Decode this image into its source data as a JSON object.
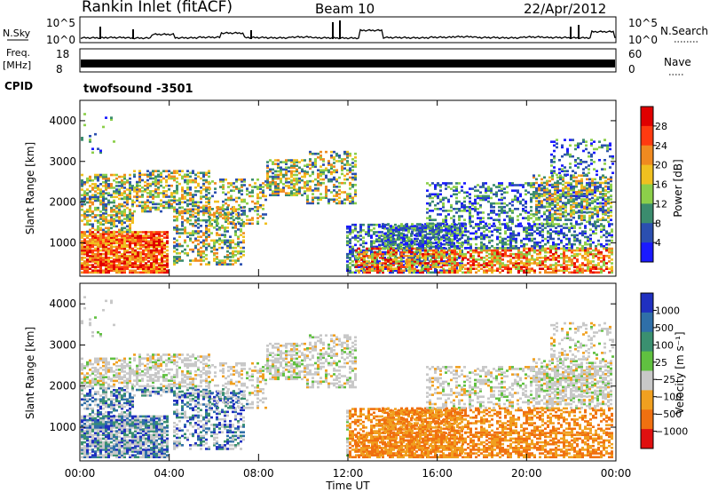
{
  "header": {
    "station": "Rankin Inlet (fitACF)",
    "beam": "Beam 10",
    "date": "22/Apr/2012"
  },
  "chart_data": [
    {
      "type": "line",
      "panel": "noise",
      "left_label": "N.Sky",
      "right_label": "N.Search",
      "left_ticks": [
        "10^5",
        "10^0"
      ],
      "right_ticks": [
        "10^5",
        "10^0"
      ],
      "description_values": [
        1.2,
        1.3,
        1.1,
        2.5,
        1.2,
        1.4,
        3.0,
        1.3,
        1.2,
        1.5,
        1.2,
        1.1,
        4.0,
        1.3,
        1.2,
        1.4,
        1.6,
        1.3,
        1.2,
        1.5,
        1.3,
        1.2,
        3.5,
        1.4
      ]
    },
    {
      "type": "line",
      "panel": "frequency",
      "left_label": "Freq.",
      "left_unit": "[MHz]",
      "right_label": "Nave",
      "left_ticks": [
        "18",
        "8"
      ],
      "right_ticks": [
        "60",
        "0"
      ],
      "freq_mhz": 10.5
    },
    {
      "type": "table",
      "panel": "cpid",
      "label": "CPID",
      "program": "twofsound",
      "cpid": "-3501"
    },
    {
      "type": "heatmap",
      "panel": "power",
      "ylabel": "Slant Range [km]",
      "y_ticks": [
        "1000",
        "2000",
        "3000",
        "4000"
      ],
      "ylim": [
        180,
        4500
      ],
      "x_ticks": [
        "00:00",
        "04:00",
        "08:00",
        "12:00",
        "16:00",
        "20:00",
        "00:00"
      ],
      "colorbar_label": "Power [dB]",
      "colorbar_ticks": [
        "4",
        "8",
        "12",
        "16",
        "20",
        "24",
        "28"
      ],
      "colorbar_colors": [
        "#1a1aff",
        "#2b4fb0",
        "#3b8c6e",
        "#8ccf4a",
        "#f0c020",
        "#f08a20",
        "#ff3a10",
        "#e00000"
      ]
    },
    {
      "type": "heatmap",
      "panel": "velocity",
      "ylabel": "Slant Range [km]",
      "y_ticks": [
        "1000",
        "2000",
        "3000",
        "4000"
      ],
      "ylim": [
        180,
        4500
      ],
      "x_ticks": [
        "00:00",
        "04:00",
        "08:00",
        "12:00",
        "16:00",
        "20:00",
        "00:00"
      ],
      "xlabel": "Time UT",
      "colorbar_label": "Velocity [m s⁻¹]",
      "colorbar_ticks": [
        "1000",
        "500",
        "100",
        "25",
        "−25",
        "−100",
        "−500",
        "−1000"
      ],
      "colorbar_colors": [
        "#2030c0",
        "#2f6fa8",
        "#3a9070",
        "#60c040",
        "#c8c8c8",
        "#f0a020",
        "#f07010",
        "#e01010"
      ]
    }
  ]
}
